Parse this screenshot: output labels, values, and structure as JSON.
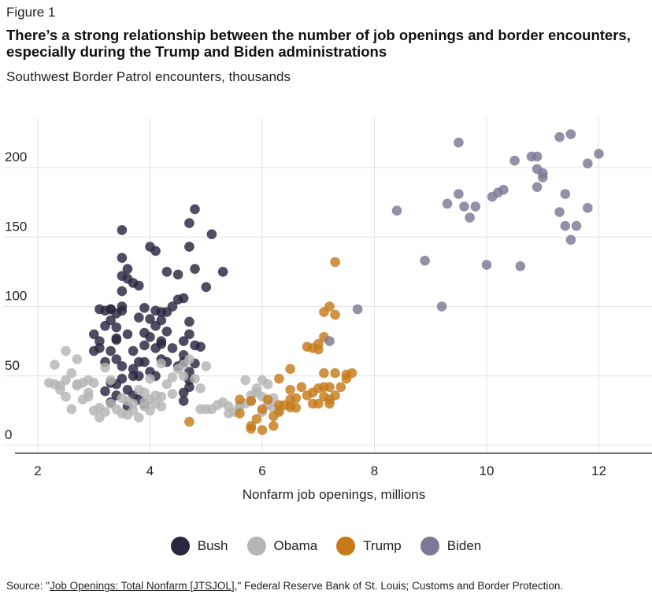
{
  "figure_label": "Figure 1",
  "title": "There’s a strong relationship between the number of job openings and border encounters, especially during the Trump and Biden administrations",
  "subtitle": "Southwest Border Patrol encounters, thousands",
  "source": {
    "prefix": "Source: \"",
    "link_text": "Job Openings: Total Nonfarm [JTSJOL]",
    "suffix": ",\" Federal Reserve Bank of St. Louis; Customs and Border Protection."
  },
  "chart_data": {
    "type": "scatter",
    "title": "There’s a strong relationship between the number of job openings and border encounters, especially during the Trump and Biden administrations",
    "subtitle": "Southwest Border Patrol encounters, thousands",
    "xlabel": "Nonfarm job openings, millions",
    "ylabel": "",
    "xlim": [
      1.8,
      13
    ],
    "ylim": [
      -8,
      232
    ],
    "xticks": [
      2,
      4,
      6,
      8,
      10,
      12
    ],
    "yticks": [
      0,
      50,
      100,
      150,
      200
    ],
    "grid": true,
    "legend_position": "bottom",
    "series": [
      {
        "name": "Bush",
        "color": "#2a2640",
        "points": [
          [
            3.5,
            155
          ],
          [
            3.5,
            135
          ],
          [
            3.6,
            127
          ],
          [
            3.5,
            122
          ],
          [
            3.5,
            111
          ],
          [
            3.7,
            117
          ],
          [
            3.6,
            120
          ],
          [
            3.8,
            115
          ],
          [
            4.0,
            143
          ],
          [
            4.1,
            140
          ],
          [
            4.7,
            143
          ],
          [
            4.8,
            170
          ],
          [
            4.7,
            160
          ],
          [
            5.1,
            152
          ],
          [
            5.3,
            125
          ],
          [
            4.8,
            127
          ],
          [
            5.0,
            114
          ],
          [
            4.3,
            125
          ],
          [
            4.5,
            123
          ],
          [
            4.5,
            105
          ],
          [
            4.4,
            100
          ],
          [
            4.6,
            106
          ],
          [
            3.0,
            80
          ],
          [
            3.1,
            98
          ],
          [
            3.2,
            97
          ],
          [
            3.3,
            98
          ],
          [
            3.4,
            95
          ],
          [
            3.5,
            97
          ],
          [
            3.3,
            90
          ],
          [
            3.4,
            85
          ],
          [
            3.4,
            77
          ],
          [
            3.2,
            86
          ],
          [
            3.1,
            75
          ],
          [
            3.1,
            70
          ],
          [
            3.3,
            68
          ],
          [
            3.4,
            62
          ],
          [
            3.2,
            60
          ],
          [
            3.5,
            57
          ],
          [
            3.6,
            80
          ],
          [
            3.8,
            92
          ],
          [
            3.9,
            81
          ],
          [
            4.0,
            91
          ],
          [
            4.1,
            97
          ],
          [
            4.2,
            90
          ],
          [
            4.3,
            96
          ],
          [
            4.1,
            86
          ],
          [
            4.3,
            82
          ],
          [
            4.2,
            75
          ],
          [
            4.0,
            78
          ],
          [
            3.9,
            72
          ],
          [
            3.7,
            68
          ],
          [
            3.8,
            60
          ],
          [
            4.1,
            70
          ],
          [
            4.2,
            73
          ],
          [
            4.4,
            70
          ],
          [
            4.6,
            75
          ],
          [
            4.7,
            89
          ],
          [
            4.7,
            80
          ],
          [
            4.8,
            72
          ],
          [
            4.9,
            71
          ],
          [
            4.6,
            65
          ],
          [
            4.6,
            60
          ],
          [
            4.8,
            59
          ],
          [
            4.7,
            53
          ],
          [
            4.5,
            57
          ],
          [
            4.3,
            60
          ],
          [
            4.2,
            62
          ],
          [
            4.0,
            53
          ],
          [
            3.8,
            50
          ],
          [
            3.7,
            55
          ],
          [
            3.5,
            48
          ],
          [
            3.4,
            44
          ],
          [
            3.3,
            45
          ],
          [
            3.2,
            39
          ],
          [
            3.3,
            31
          ],
          [
            3.4,
            36
          ],
          [
            3.6,
            40
          ],
          [
            3.7,
            36
          ],
          [
            3.8,
            33
          ],
          [
            3.6,
            28
          ],
          [
            3.9,
            30
          ],
          [
            4.7,
            42
          ],
          [
            4.6,
            38
          ],
          [
            4.6,
            32
          ],
          [
            4.7,
            47
          ],
          [
            3.5,
            100
          ],
          [
            3.3,
            98
          ],
          [
            3.9,
            99
          ],
          [
            4.2,
            96
          ],
          [
            3.4,
            76
          ],
          [
            3.9,
            60
          ],
          [
            3.7,
            50
          ],
          [
            3.0,
            68
          ],
          [
            4.1,
            50
          ]
        ]
      },
      {
        "name": "Obama",
        "color": "#b5b5b5",
        "points": [
          [
            2.2,
            45
          ],
          [
            2.3,
            58
          ],
          [
            2.3,
            44
          ],
          [
            2.4,
            43
          ],
          [
            2.4,
            40
          ],
          [
            2.5,
            47
          ],
          [
            2.5,
            35
          ],
          [
            2.5,
            68
          ],
          [
            2.6,
            52
          ],
          [
            2.6,
            26
          ],
          [
            2.7,
            62
          ],
          [
            2.8,
            45
          ],
          [
            2.7,
            43
          ],
          [
            2.8,
            33
          ],
          [
            2.9,
            35
          ],
          [
            2.9,
            47
          ],
          [
            3.0,
            45
          ],
          [
            3.0,
            25
          ],
          [
            3.1,
            20
          ],
          [
            3.1,
            27
          ],
          [
            3.2,
            24
          ],
          [
            3.2,
            56
          ],
          [
            3.3,
            47
          ],
          [
            3.3,
            30
          ],
          [
            3.4,
            26
          ],
          [
            3.5,
            23
          ],
          [
            3.6,
            22
          ],
          [
            3.6,
            32
          ],
          [
            3.7,
            30
          ],
          [
            3.7,
            25
          ],
          [
            3.8,
            20
          ],
          [
            3.8,
            40
          ],
          [
            3.9,
            31
          ],
          [
            3.9,
            28
          ],
          [
            4.0,
            33
          ],
          [
            4.0,
            25
          ],
          [
            4.1,
            36
          ],
          [
            4.1,
            30
          ],
          [
            4.2,
            28
          ],
          [
            4.2,
            35
          ],
          [
            4.3,
            44
          ],
          [
            4.4,
            49
          ],
          [
            4.4,
            37
          ],
          [
            4.2,
            59
          ],
          [
            4.5,
            55
          ],
          [
            4.6,
            58
          ],
          [
            4.7,
            62
          ],
          [
            4.6,
            50
          ],
          [
            4.8,
            48
          ],
          [
            4.9,
            41
          ],
          [
            5.0,
            57
          ],
          [
            4.9,
            26
          ],
          [
            5.0,
            26
          ],
          [
            5.1,
            26
          ],
          [
            5.2,
            29
          ],
          [
            5.3,
            31
          ],
          [
            5.4,
            28
          ],
          [
            5.4,
            23
          ],
          [
            5.5,
            24
          ],
          [
            5.6,
            28
          ],
          [
            5.7,
            30
          ],
          [
            5.7,
            47
          ],
          [
            5.8,
            32
          ],
          [
            5.8,
            36
          ],
          [
            5.9,
            38
          ],
          [
            5.9,
            41
          ],
          [
            6.0,
            35
          ],
          [
            6.0,
            47
          ],
          [
            6.1,
            29
          ],
          [
            6.2,
            34
          ],
          [
            6.2,
            27
          ],
          [
            6.0,
            24
          ],
          [
            5.6,
            29
          ],
          [
            6.3,
            25
          ],
          [
            6.5,
            27
          ],
          [
            6.1,
            44
          ],
          [
            3.9,
            38
          ],
          [
            4.0,
            48
          ],
          [
            3.5,
            34
          ],
          [
            2.9,
            38
          ],
          [
            2.7,
            44
          ]
        ]
      },
      {
        "name": "Trump",
        "color": "#c67a1a",
        "points": [
          [
            4.7,
            17
          ],
          [
            5.6,
            33
          ],
          [
            5.6,
            23
          ],
          [
            5.8,
            32
          ],
          [
            5.8,
            14
          ],
          [
            5.9,
            19
          ],
          [
            5.8,
            12
          ],
          [
            6.0,
            26
          ],
          [
            6.0,
            11
          ],
          [
            6.2,
            21
          ],
          [
            6.1,
            33
          ],
          [
            6.3,
            24
          ],
          [
            6.3,
            29
          ],
          [
            6.4,
            29
          ],
          [
            6.5,
            33
          ],
          [
            6.5,
            28
          ],
          [
            6.6,
            27
          ],
          [
            6.6,
            34
          ],
          [
            6.5,
            40
          ],
          [
            6.3,
            48
          ],
          [
            6.5,
            55
          ],
          [
            6.7,
            42
          ],
          [
            6.8,
            36
          ],
          [
            6.8,
            71
          ],
          [
            6.9,
            70
          ],
          [
            6.9,
            38
          ],
          [
            7.0,
            73
          ],
          [
            7.0,
            69
          ],
          [
            7.1,
            78
          ],
          [
            7.0,
            41
          ],
          [
            7.0,
            30
          ],
          [
            7.1,
            42
          ],
          [
            7.1,
            52
          ],
          [
            7.1,
            96
          ],
          [
            7.2,
            100
          ],
          [
            7.2,
            42
          ],
          [
            7.3,
            52
          ],
          [
            7.3,
            36
          ],
          [
            7.2,
            33
          ],
          [
            7.4,
            42
          ],
          [
            7.5,
            51
          ],
          [
            7.5,
            48
          ],
          [
            7.3,
            94
          ],
          [
            7.3,
            132
          ],
          [
            7.6,
            52
          ],
          [
            7.1,
            35
          ],
          [
            6.9,
            30
          ],
          [
            6.2,
            14
          ],
          [
            7.2,
            30
          ]
        ]
      },
      {
        "name": "Biden",
        "color": "#7c7895",
        "points": [
          [
            7.2,
            75
          ],
          [
            7.7,
            98
          ],
          [
            8.4,
            169
          ],
          [
            8.9,
            133
          ],
          [
            9.2,
            100
          ],
          [
            9.3,
            174
          ],
          [
            9.5,
            181
          ],
          [
            9.5,
            218
          ],
          [
            9.6,
            172
          ],
          [
            9.7,
            164
          ],
          [
            9.8,
            172
          ],
          [
            10.0,
            130
          ],
          [
            10.1,
            179
          ],
          [
            10.2,
            182
          ],
          [
            10.3,
            184
          ],
          [
            10.5,
            205
          ],
          [
            10.6,
            129
          ],
          [
            10.8,
            208
          ],
          [
            10.9,
            208
          ],
          [
            10.9,
            199
          ],
          [
            10.9,
            186
          ],
          [
            11.0,
            196
          ],
          [
            11.0,
            193
          ],
          [
            11.3,
            222
          ],
          [
            11.3,
            168
          ],
          [
            11.4,
            158
          ],
          [
            11.4,
            181
          ],
          [
            11.5,
            224
          ],
          [
            11.5,
            148
          ],
          [
            11.6,
            158
          ],
          [
            11.8,
            203
          ],
          [
            11.8,
            171
          ],
          [
            12.0,
            210
          ]
        ]
      }
    ]
  }
}
